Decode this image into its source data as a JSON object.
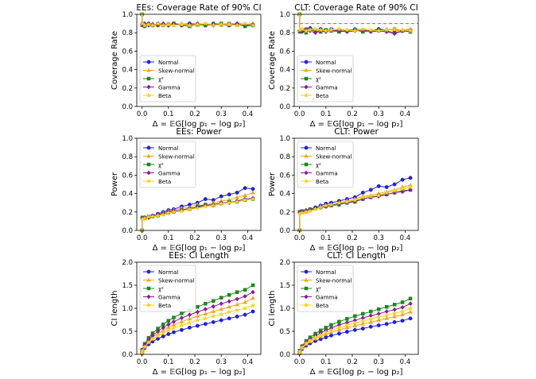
{
  "legend_entries": [
    "Normal",
    "Skew-normal",
    "χ²",
    "Gamma",
    "Beta"
  ],
  "series_colors": {
    "Normal": "#1f1fe0",
    "Skew-normal": "#f5a623",
    "χ²": "#1a8a1a",
    "Gamma": "#8b1a9a",
    "Beta": "#f7d21b"
  },
  "chart_data": [
    {
      "type": "line",
      "title": "EEs: Coverage Rate of 90% CI",
      "xlabel": "Δ = 𝔼G[log p₁ − log p₂]",
      "ylabel": "Coverage Rate",
      "xlim": [
        -0.02,
        0.45
      ],
      "ylim": [
        0,
        1.0
      ],
      "xticks": [
        0.0,
        0.1,
        0.2,
        0.3,
        0.4
      ],
      "xtick_labels": [
        "0.0",
        "0.1",
        "0.2",
        "0.3",
        "0.4"
      ],
      "yticks": [
        0,
        0.2,
        0.4,
        0.6,
        0.8,
        1.0
      ],
      "ytick_labels": [
        "0.0",
        "0.2",
        "0.4",
        "0.6",
        "0.8",
        "1.0"
      ],
      "reference_line": null,
      "x": [
        0,
        0.001,
        0.01,
        0.025,
        0.04,
        0.06,
        0.08,
        0.1,
        0.12,
        0.15,
        0.18,
        0.21,
        0.24,
        0.27,
        0.3,
        0.33,
        0.36,
        0.39,
        0.42
      ],
      "series": [
        {
          "name": "Normal",
          "values": [
            1.0,
            0.9,
            0.89,
            0.9,
            0.88,
            0.9,
            0.89,
            0.88,
            0.9,
            0.89,
            0.9,
            0.89,
            0.88,
            0.9,
            0.89,
            0.9,
            0.89,
            0.88,
            0.88
          ]
        },
        {
          "name": "Skew-normal",
          "values": [
            1.0,
            0.89,
            0.88,
            0.89,
            0.9,
            0.88,
            0.89,
            0.9,
            0.88,
            0.9,
            0.89,
            0.88,
            0.9,
            0.89,
            0.88,
            0.9,
            0.88,
            0.89,
            0.9
          ]
        },
        {
          "name": "χ²",
          "values": [
            1.0,
            0.88,
            0.87,
            0.89,
            0.88,
            0.89,
            0.88,
            0.89,
            0.9,
            0.88,
            0.87,
            0.89,
            0.88,
            0.89,
            0.9,
            0.88,
            0.89,
            0.87,
            0.88
          ]
        },
        {
          "name": "Gamma",
          "values": [
            1.0,
            0.89,
            0.9,
            0.88,
            0.89,
            0.88,
            0.9,
            0.88,
            0.89,
            0.88,
            0.89,
            0.9,
            0.89,
            0.88,
            0.89,
            0.88,
            0.9,
            0.89,
            0.89
          ]
        },
        {
          "name": "Beta",
          "values": [
            1.0,
            0.9,
            0.88,
            0.89,
            0.88,
            0.9,
            0.88,
            0.89,
            0.88,
            0.89,
            0.88,
            0.89,
            0.9,
            0.88,
            0.89,
            0.89,
            0.88,
            0.9,
            0.88
          ]
        }
      ]
    },
    {
      "type": "line",
      "title": "CLT: Coverage Rate of 90% CI",
      "xlabel": "Δ = 𝔼G[log p₁ − log p₂]",
      "ylabel": "Coverage Rate",
      "xlim": [
        -0.02,
        0.45
      ],
      "ylim": [
        0,
        1.0
      ],
      "xticks": [
        0.0,
        0.1,
        0.2,
        0.3,
        0.4
      ],
      "xtick_labels": [
        "0.0",
        "0.1",
        "0.2",
        "0.3",
        "0.4"
      ],
      "yticks": [
        0,
        0.2,
        0.4,
        0.6,
        0.8,
        1.0
      ],
      "ytick_labels": [
        "0.0",
        "0.2",
        "0.4",
        "0.6",
        "0.8",
        "1.0"
      ],
      "reference_line": 0.9,
      "x": [
        0,
        0.001,
        0.01,
        0.025,
        0.04,
        0.06,
        0.08,
        0.1,
        0.12,
        0.15,
        0.18,
        0.21,
        0.24,
        0.27,
        0.3,
        0.33,
        0.36,
        0.39,
        0.42
      ],
      "series": [
        {
          "name": "Normal",
          "values": [
            1.0,
            0.82,
            0.83,
            0.84,
            0.85,
            0.83,
            0.84,
            0.82,
            0.84,
            0.83,
            0.82,
            0.84,
            0.83,
            0.82,
            0.84,
            0.83,
            0.84,
            0.82,
            0.83
          ]
        },
        {
          "name": "Skew-normal",
          "values": [
            1.0,
            0.83,
            0.82,
            0.84,
            0.83,
            0.84,
            0.82,
            0.83,
            0.84,
            0.82,
            0.83,
            0.84,
            0.82,
            0.83,
            0.82,
            0.84,
            0.82,
            0.83,
            0.84
          ]
        },
        {
          "name": "χ²",
          "values": [
            1.0,
            0.81,
            0.82,
            0.8,
            0.83,
            0.82,
            0.81,
            0.83,
            0.82,
            0.81,
            0.82,
            0.83,
            0.81,
            0.82,
            0.83,
            0.82,
            0.8,
            0.82,
            0.81
          ]
        },
        {
          "name": "Gamma",
          "values": [
            1.0,
            0.82,
            0.81,
            0.83,
            0.82,
            0.8,
            0.82,
            0.81,
            0.83,
            0.82,
            0.81,
            0.82,
            0.83,
            0.81,
            0.82,
            0.81,
            0.79,
            0.82,
            0.82
          ]
        },
        {
          "name": "Beta",
          "values": [
            1.0,
            0.83,
            0.84,
            0.82,
            0.83,
            0.84,
            0.83,
            0.82,
            0.83,
            0.84,
            0.83,
            0.82,
            0.84,
            0.83,
            0.82,
            0.83,
            0.84,
            0.83,
            0.82
          ]
        }
      ]
    },
    {
      "type": "line",
      "title": "EEs: Power",
      "xlabel": "Δ = 𝔼G[log p₁ − log p₂]",
      "ylabel": "Power",
      "xlim": [
        -0.02,
        0.45
      ],
      "ylim": [
        0,
        1.0
      ],
      "xticks": [
        0.0,
        0.1,
        0.2,
        0.3,
        0.4
      ],
      "xtick_labels": [
        "0.0",
        "0.1",
        "0.2",
        "0.3",
        "0.4"
      ],
      "yticks": [
        0,
        0.2,
        0.4,
        0.6,
        0.8,
        1.0
      ],
      "ytick_labels": [
        "0.0",
        "0.2",
        "0.4",
        "0.6",
        "0.8",
        "1.0"
      ],
      "reference_line": null,
      "x": [
        0,
        0.001,
        0.01,
        0.025,
        0.04,
        0.06,
        0.08,
        0.1,
        0.12,
        0.15,
        0.18,
        0.21,
        0.24,
        0.27,
        0.3,
        0.33,
        0.36,
        0.39,
        0.42
      ],
      "series": [
        {
          "name": "Normal",
          "values": [
            0.0,
            0.13,
            0.14,
            0.15,
            0.16,
            0.18,
            0.2,
            0.22,
            0.23,
            0.26,
            0.28,
            0.3,
            0.34,
            0.33,
            0.37,
            0.39,
            0.41,
            0.46,
            0.45
          ]
        },
        {
          "name": "Skew-normal",
          "values": [
            0.0,
            0.13,
            0.13,
            0.14,
            0.16,
            0.17,
            0.19,
            0.21,
            0.22,
            0.24,
            0.25,
            0.28,
            0.27,
            0.3,
            0.32,
            0.33,
            0.36,
            0.38,
            0.41
          ]
        },
        {
          "name": "χ²",
          "values": [
            0.0,
            0.14,
            0.13,
            0.15,
            0.15,
            0.16,
            0.18,
            0.19,
            0.2,
            0.22,
            0.23,
            0.26,
            0.28,
            0.27,
            0.29,
            0.31,
            0.31,
            0.33,
            0.34
          ]
        },
        {
          "name": "Gamma",
          "values": [
            0.0,
            0.13,
            0.14,
            0.14,
            0.16,
            0.17,
            0.18,
            0.2,
            0.21,
            0.22,
            0.24,
            0.25,
            0.27,
            0.28,
            0.3,
            0.3,
            0.32,
            0.34,
            0.35
          ]
        },
        {
          "name": "Beta",
          "values": [
            0.0,
            0.12,
            0.13,
            0.15,
            0.15,
            0.16,
            0.17,
            0.19,
            0.2,
            0.21,
            0.23,
            0.24,
            0.26,
            0.27,
            0.29,
            0.3,
            0.31,
            0.33,
            0.34
          ]
        }
      ]
    },
    {
      "type": "line",
      "title": "CLT: Power",
      "xlabel": "Δ = 𝔼G[log p₁ − log p₂]",
      "ylabel": "Power",
      "xlim": [
        -0.02,
        0.45
      ],
      "ylim": [
        0,
        1.0
      ],
      "xticks": [
        0.0,
        0.1,
        0.2,
        0.3,
        0.4
      ],
      "xtick_labels": [
        "0.0",
        "0.1",
        "0.2",
        "0.3",
        "0.4"
      ],
      "yticks": [
        0,
        0.2,
        0.4,
        0.6,
        0.8,
        1.0
      ],
      "ytick_labels": [
        "0.0",
        "0.2",
        "0.4",
        "0.6",
        "0.8",
        "1.0"
      ],
      "reference_line": null,
      "x": [
        0,
        0.001,
        0.01,
        0.025,
        0.04,
        0.06,
        0.08,
        0.1,
        0.12,
        0.15,
        0.18,
        0.21,
        0.24,
        0.27,
        0.3,
        0.33,
        0.36,
        0.39,
        0.42
      ],
      "series": [
        {
          "name": "Normal",
          "values": [
            0.0,
            0.2,
            0.2,
            0.21,
            0.23,
            0.25,
            0.27,
            0.29,
            0.3,
            0.32,
            0.34,
            0.36,
            0.41,
            0.44,
            0.48,
            0.47,
            0.5,
            0.55,
            0.57
          ]
        },
        {
          "name": "Skew-normal",
          "values": [
            0.0,
            0.19,
            0.2,
            0.2,
            0.22,
            0.24,
            0.26,
            0.27,
            0.28,
            0.3,
            0.32,
            0.34,
            0.37,
            0.38,
            0.4,
            0.42,
            0.44,
            0.47,
            0.49
          ]
        },
        {
          "name": "χ²",
          "values": [
            0.0,
            0.2,
            0.21,
            0.21,
            0.23,
            0.24,
            0.25,
            0.26,
            0.27,
            0.28,
            0.3,
            0.31,
            0.34,
            0.36,
            0.38,
            0.39,
            0.41,
            0.43,
            0.44
          ]
        },
        {
          "name": "Gamma",
          "values": [
            0.0,
            0.2,
            0.2,
            0.22,
            0.22,
            0.24,
            0.25,
            0.26,
            0.28,
            0.29,
            0.3,
            0.32,
            0.34,
            0.36,
            0.37,
            0.39,
            0.41,
            0.42,
            0.44
          ]
        },
        {
          "name": "Beta",
          "values": [
            0.0,
            0.18,
            0.19,
            0.2,
            0.21,
            0.23,
            0.25,
            0.27,
            0.28,
            0.3,
            0.31,
            0.33,
            0.36,
            0.37,
            0.38,
            0.41,
            0.43,
            0.45,
            0.47
          ]
        }
      ]
    },
    {
      "type": "line",
      "title": "EEs: CI Length",
      "xlabel": "Δ = 𝔼G[log p₁ − log p₂]",
      "ylabel": "CI length",
      "xlim": [
        -0.02,
        0.45
      ],
      "ylim": [
        0,
        2.0
      ],
      "xticks": [
        0.0,
        0.1,
        0.2,
        0.3,
        0.4
      ],
      "xtick_labels": [
        "0.0",
        "0.1",
        "0.2",
        "0.3",
        "0.4"
      ],
      "yticks": [
        0,
        0.5,
        1.0,
        1.5,
        2.0
      ],
      "ytick_labels": [
        "0.0",
        "0.5",
        "1.0",
        "1.5",
        "2.0"
      ],
      "reference_line": null,
      "x": [
        0,
        0.001,
        0.01,
        0.025,
        0.04,
        0.06,
        0.08,
        0.1,
        0.12,
        0.15,
        0.18,
        0.21,
        0.24,
        0.27,
        0.3,
        0.33,
        0.36,
        0.39,
        0.42
      ],
      "series": [
        {
          "name": "Normal",
          "values": [
            0.02,
            0.06,
            0.14,
            0.22,
            0.28,
            0.34,
            0.39,
            0.44,
            0.48,
            0.53,
            0.58,
            0.62,
            0.66,
            0.7,
            0.74,
            0.78,
            0.82,
            0.86,
            0.93
          ]
        },
        {
          "name": "Skew-normal",
          "values": [
            0.03,
            0.08,
            0.18,
            0.29,
            0.37,
            0.45,
            0.52,
            0.59,
            0.64,
            0.71,
            0.77,
            0.83,
            0.88,
            0.93,
            0.98,
            1.03,
            1.08,
            1.13,
            1.22
          ]
        },
        {
          "name": "χ²",
          "values": [
            0.04,
            0.1,
            0.23,
            0.36,
            0.46,
            0.56,
            0.65,
            0.73,
            0.8,
            0.89,
            0.96,
            1.03,
            1.1,
            1.16,
            1.23,
            1.29,
            1.35,
            1.4,
            1.5
          ]
        },
        {
          "name": "Gamma",
          "values": [
            0.03,
            0.09,
            0.2,
            0.32,
            0.41,
            0.5,
            0.58,
            0.65,
            0.71,
            0.79,
            0.86,
            0.92,
            0.98,
            1.04,
            1.1,
            1.15,
            1.2,
            1.26,
            1.35
          ]
        },
        {
          "name": "Beta",
          "values": [
            0.02,
            0.07,
            0.16,
            0.26,
            0.33,
            0.4,
            0.46,
            0.52,
            0.57,
            0.63,
            0.68,
            0.74,
            0.78,
            0.83,
            0.87,
            0.92,
            0.96,
            1.0,
            1.06
          ]
        }
      ]
    },
    {
      "type": "line",
      "title": "CLT: CI Length",
      "xlabel": "Δ = 𝔼G[log p₁ − log p₂]",
      "ylabel": "CI length",
      "xlim": [
        -0.02,
        0.45
      ],
      "ylim": [
        0,
        2.0
      ],
      "xticks": [
        0.0,
        0.1,
        0.2,
        0.3,
        0.4
      ],
      "xtick_labels": [
        "0.0",
        "0.1",
        "0.2",
        "0.3",
        "0.4"
      ],
      "yticks": [
        0,
        0.5,
        1.0,
        1.5,
        2.0
      ],
      "ytick_labels": [
        "0.0",
        "0.5",
        "1.0",
        "1.5",
        "2.0"
      ],
      "reference_line": null,
      "x": [
        0,
        0.001,
        0.01,
        0.025,
        0.04,
        0.06,
        0.08,
        0.1,
        0.12,
        0.15,
        0.18,
        0.21,
        0.24,
        0.27,
        0.3,
        0.33,
        0.36,
        0.39,
        0.42
      ],
      "series": [
        {
          "name": "Normal",
          "values": [
            0.02,
            0.05,
            0.12,
            0.19,
            0.24,
            0.29,
            0.33,
            0.37,
            0.41,
            0.45,
            0.49,
            0.53,
            0.56,
            0.6,
            0.63,
            0.66,
            0.7,
            0.73,
            0.78
          ]
        },
        {
          "name": "Skew-normal",
          "values": [
            0.02,
            0.06,
            0.14,
            0.22,
            0.28,
            0.34,
            0.39,
            0.44,
            0.48,
            0.53,
            0.58,
            0.62,
            0.66,
            0.7,
            0.74,
            0.78,
            0.82,
            0.86,
            0.92
          ]
        },
        {
          "name": "χ²",
          "values": [
            0.03,
            0.08,
            0.18,
            0.29,
            0.37,
            0.45,
            0.52,
            0.58,
            0.64,
            0.71,
            0.77,
            0.83,
            0.88,
            0.93,
            0.98,
            1.03,
            1.08,
            1.13,
            1.21
          ]
        },
        {
          "name": "Gamma",
          "values": [
            0.03,
            0.07,
            0.17,
            0.26,
            0.33,
            0.4,
            0.47,
            0.52,
            0.57,
            0.64,
            0.69,
            0.74,
            0.79,
            0.84,
            0.88,
            0.93,
            0.97,
            1.02,
            1.1
          ]
        },
        {
          "name": "Beta",
          "values": [
            0.02,
            0.06,
            0.15,
            0.24,
            0.3,
            0.37,
            0.42,
            0.48,
            0.52,
            0.58,
            0.63,
            0.68,
            0.72,
            0.77,
            0.81,
            0.85,
            0.89,
            0.93,
            1.0
          ]
        }
      ]
    }
  ]
}
